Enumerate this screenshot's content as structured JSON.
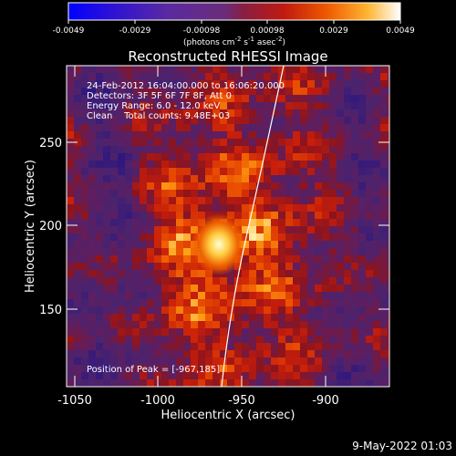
{
  "colorbar": {
    "tick_labels": [
      "-0.0049",
      "-0.0029",
      "-0.00098",
      "0.00098",
      "0.0029",
      "0.0049"
    ],
    "units": "(photons cm",
    "units_exp1": "-2",
    "units_mid": " s",
    "units_exp2": "-1",
    "units_end": " asec",
    "units_exp3": "-2",
    "units_close": ")",
    "colors": [
      "#0000ff",
      "#3c14c8",
      "#6e3296",
      "#7a2c5a",
      "#b41414",
      "#e64600",
      "#ff8c00",
      "#ffd24b",
      "#ffffff"
    ]
  },
  "title": "Reconstructed RHESSI Image",
  "info": {
    "time_range": "24-Feb-2012 16:04:00.000 to 16:06:20.000",
    "detectors": "Detectors: 3F 5F 6F 7F 8F, Att 0",
    "energy": "Energy Range: 6.0 - 12.0 keV",
    "clean": "Clean    Total counts: 9.48E+03",
    "peak": "Position of Peak = [-967,185]"
  },
  "axes": {
    "xlabel": "Heliocentric X (arcsec)",
    "ylabel": "Heliocentric Y (arcsec)",
    "xticks": [
      "-1050",
      "-1000",
      "-950",
      "-900"
    ],
    "yticks": [
      "250",
      "200",
      "150"
    ]
  },
  "footer": {
    "date": "9-May-2022 01:03"
  },
  "image": {
    "peak_x": -967,
    "peak_y": 185,
    "x_range": [
      -1065,
      -873
    ],
    "y_range": [
      97,
      289
    ]
  }
}
